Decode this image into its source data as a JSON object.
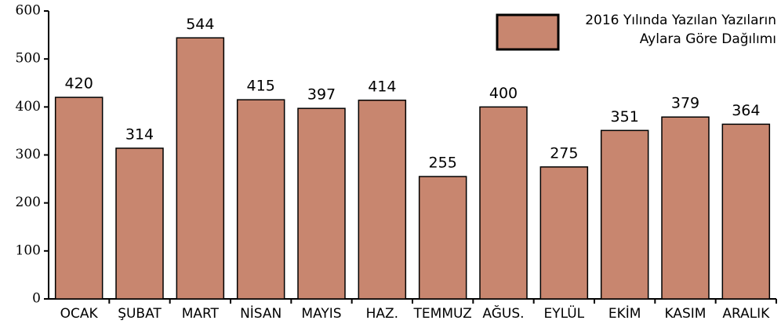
{
  "chart_data": {
    "type": "bar",
    "categories": [
      "OCAK",
      "ŞUBAT",
      "MART",
      "NİSAN",
      "MAYIS",
      "HAZ.",
      "TEMMUZ",
      "AĞUS.",
      "EYLÜL",
      "EKİM",
      "KASIM",
      "ARALIK"
    ],
    "series": [
      {
        "name": "2016 Yılında Yazılan Yazıların Aylara Göre Dağılımı",
        "color": "#c8866f",
        "values": [
          420,
          314,
          544,
          415,
          397,
          414,
          255,
          400,
          275,
          351,
          379,
          364
        ]
      }
    ],
    "ylim": [
      0,
      600
    ],
    "yticks": [
      0,
      100,
      200,
      300,
      400,
      500,
      600
    ],
    "legend": "upper right"
  }
}
